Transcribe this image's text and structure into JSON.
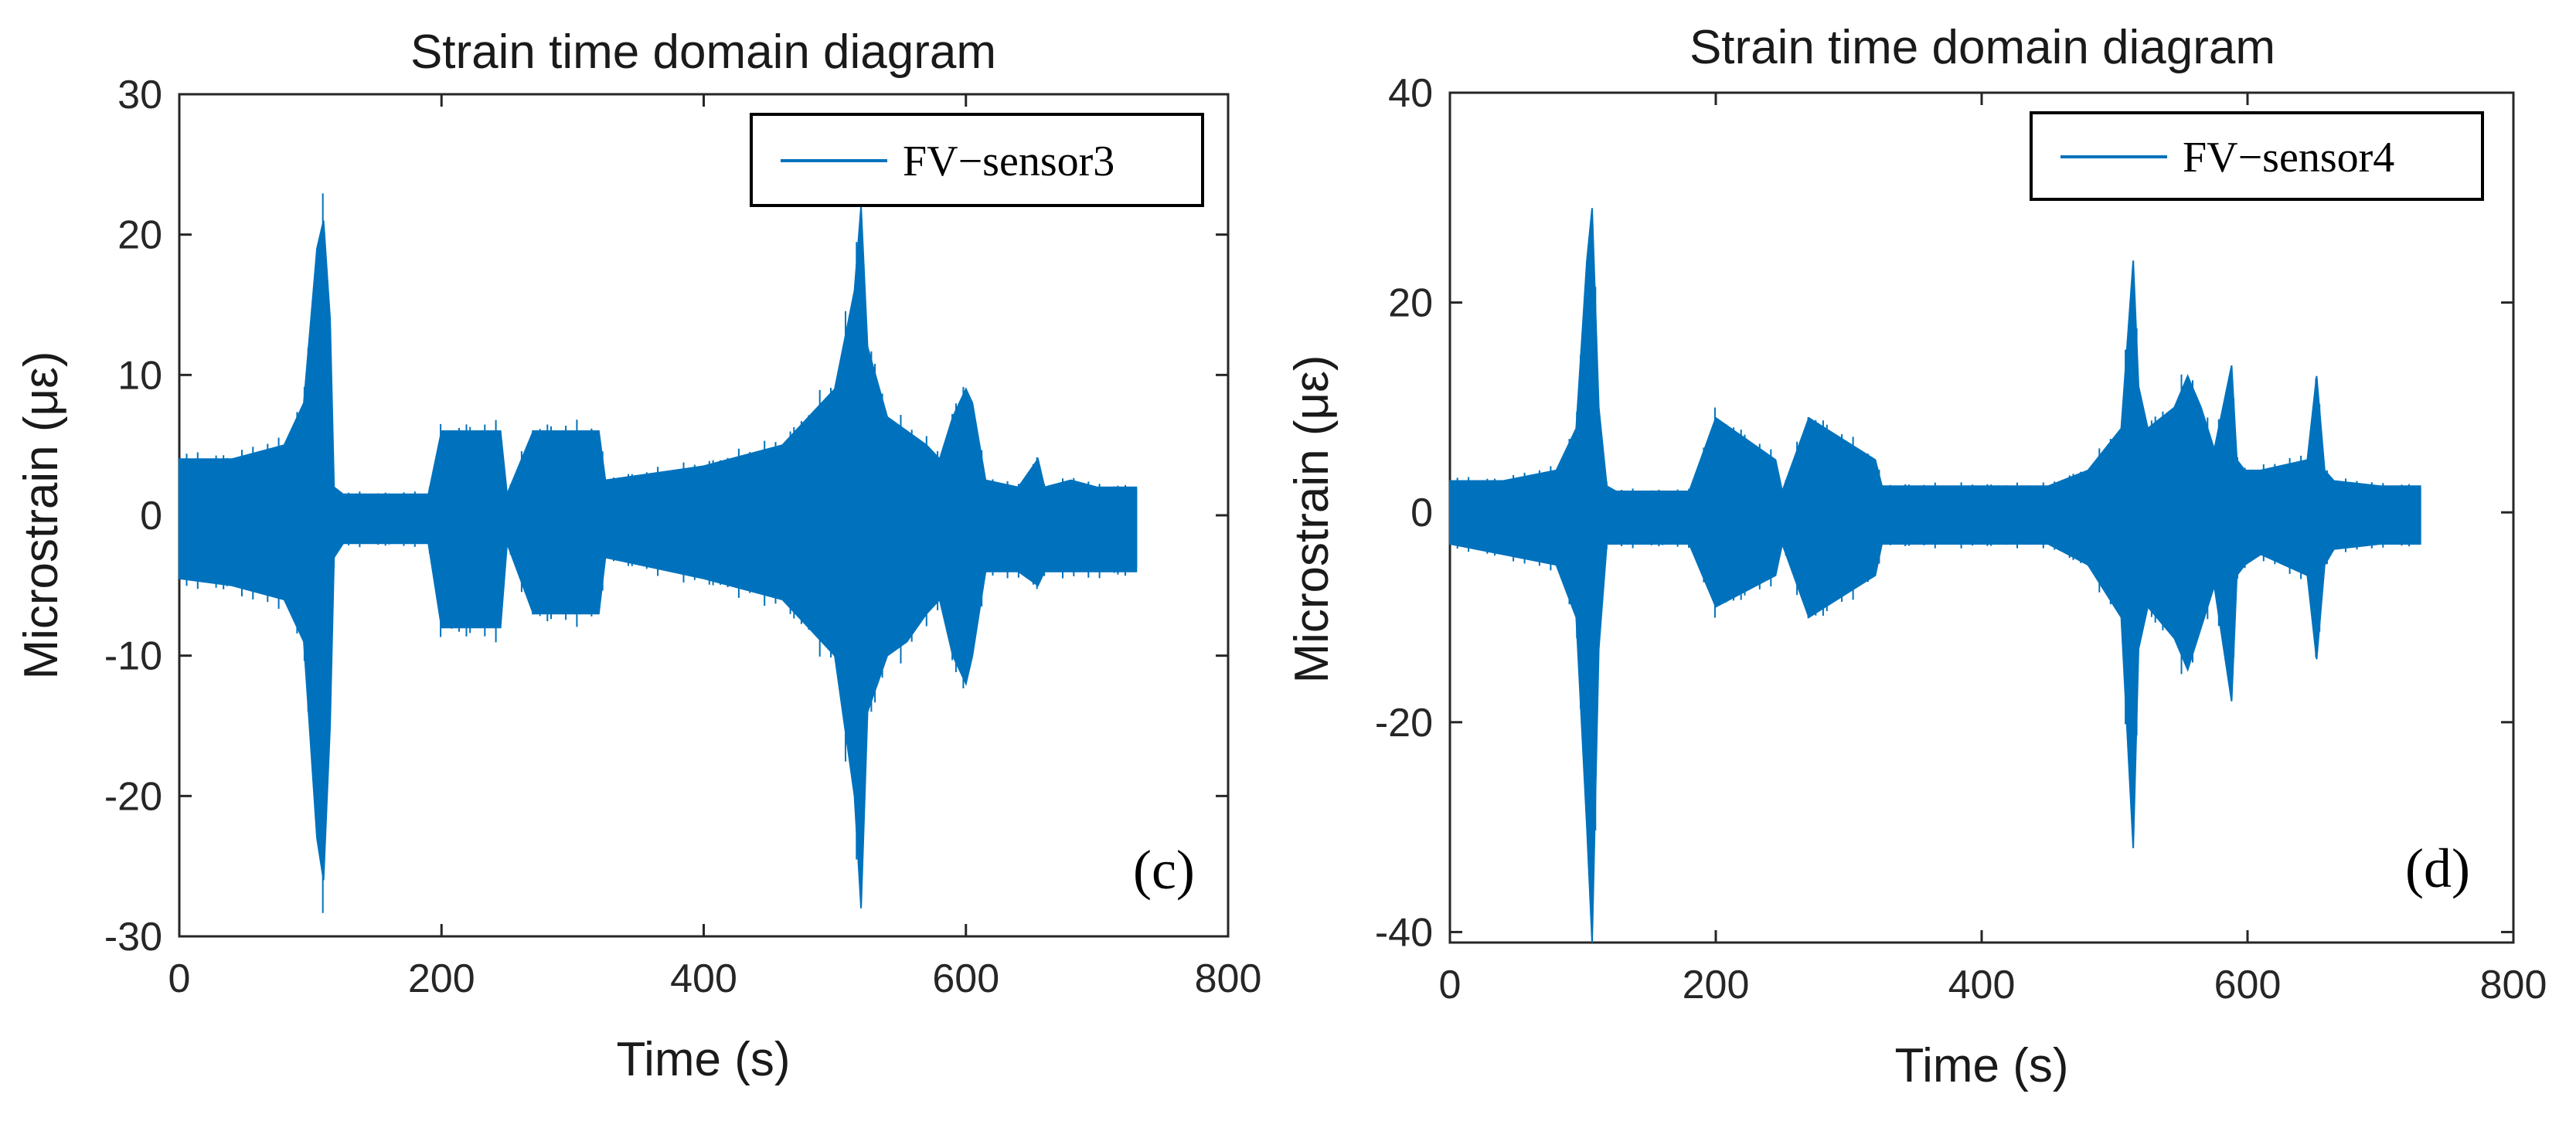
{
  "colors": {
    "series": "#0072bd",
    "axis": "#262626",
    "text": "#1a1a1a",
    "background": "#ffffff"
  },
  "chart_data": [
    {
      "type": "line",
      "title": "Strain time domain diagram",
      "xlabel": "Time (s)",
      "ylabel": "Microstrain (με)",
      "xlim": [
        0,
        800
      ],
      "ylim": [
        -30,
        30
      ],
      "xticks": [
        0,
        200,
        400,
        600,
        800
      ],
      "yticks": [
        30,
        20,
        10,
        0,
        -10,
        -20,
        -30
      ],
      "legend": "top-right",
      "panel_label": "(c)",
      "series": [
        {
          "name": "FV−sensor3",
          "x": [
            0,
            40,
            80,
            95,
            105,
            110,
            115,
            118,
            125,
            190,
            200,
            245,
            250,
            270,
            320,
            325,
            400,
            460,
            500,
            515,
            520,
            525,
            540,
            555,
            570,
            580,
            590,
            600,
            605,
            615,
            640,
            655,
            660,
            680,
            700,
            730
          ],
          "upper": [
            4,
            4,
            5,
            8,
            19,
            21,
            14,
            2,
            1.5,
            1.5,
            6,
            6,
            1.5,
            6,
            6,
            2.5,
            3.5,
            5,
            9,
            16,
            22,
            12,
            7,
            6,
            5,
            4,
            7,
            9,
            8,
            2.5,
            2,
            4,
            2,
            2.5,
            2,
            2
          ],
          "lower": [
            -4.5,
            -5,
            -6,
            -9,
            -23,
            -26,
            -15,
            -3,
            -2,
            -2,
            -8,
            -8,
            -2,
            -7,
            -7,
            -3,
            -4.5,
            -6,
            -10,
            -20,
            -28,
            -14,
            -10,
            -9,
            -7,
            -6,
            -10,
            -12,
            -10,
            -4,
            -4,
            -5,
            -4,
            -4,
            -4,
            -4
          ]
        }
      ]
    },
    {
      "type": "line",
      "title": "Strain time domain diagram",
      "xlabel": "Time (s)",
      "ylabel": "Microstrain (με)",
      "xlim": [
        0,
        800
      ],
      "ylim": [
        -41,
        40
      ],
      "xticks": [
        0,
        200,
        400,
        600,
        800
      ],
      "yticks": [
        40,
        20,
        0,
        -20,
        -40
      ],
      "legend": "top-right",
      "panel_label": "(d)",
      "series": [
        {
          "name": "FV−sensor4",
          "x": [
            0,
            40,
            80,
            95,
            103,
            107,
            112,
            118,
            125,
            180,
            200,
            245,
            250,
            270,
            320,
            325,
            450,
            480,
            505,
            514,
            518,
            525,
            545,
            555,
            565,
            575,
            588,
            592,
            598,
            610,
            645,
            652,
            658,
            665,
            700,
            730
          ],
          "upper": [
            3,
            3,
            4,
            8,
            24,
            29,
            10,
            2.5,
            2,
            2,
            9,
            5,
            2,
            9,
            5,
            2.5,
            2.5,
            4,
            8,
            24,
            12,
            8,
            10,
            13,
            10,
            6,
            14,
            5,
            4,
            4,
            5,
            13,
            4,
            3,
            2.5,
            2.5
          ],
          "lower": [
            -3,
            -4,
            -5,
            -10,
            -30,
            -42,
            -13,
            -3,
            -3,
            -3,
            -9,
            -6,
            -3,
            -10,
            -6,
            -3,
            -3,
            -5,
            -10,
            -32,
            -13,
            -9,
            -12,
            -15,
            -11,
            -7,
            -18,
            -6,
            -5,
            -4,
            -6,
            -14,
            -5,
            -3.5,
            -3,
            -3
          ]
        }
      ]
    }
  ]
}
